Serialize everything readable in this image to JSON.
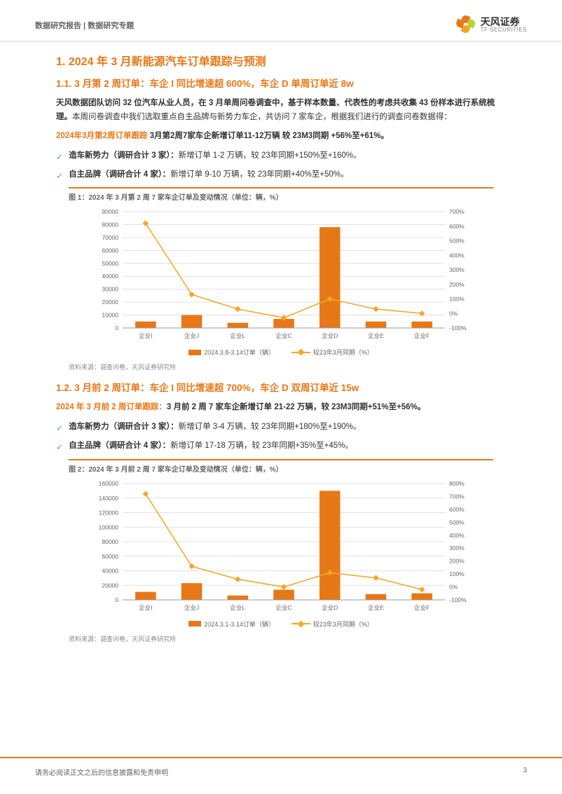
{
  "header": {
    "left": "数据研究报告 | 数据研究专题",
    "logo_cn": "天风证券",
    "logo_en": "TF SECURITIES",
    "petal_colors": [
      "#e67817",
      "#b8d432",
      "#f5a623",
      "#e67817"
    ]
  },
  "section1": {
    "title": "1. 2024 年 3 月新能源汽车订单跟踪与预测",
    "sub1_title": "1.1. 3 月第 2 周订单：车企 I 同比增速超 600%，车企 D 单周订单近 8w",
    "p1_bold": "天风数据团队访问 32 位汽车从业人员，在 3 月单周问卷调查中，基于样本数量、代表性的考虑共收集 43 份样本进行系统梳理。",
    "p1_rest": "本周问卷调查中我们选取重点自主品牌与新势力车企，共访问 7 家车企，根据我们进行的调查问卷数据得：",
    "p2_highlight": "2024年3月第2周订单跟踪",
    "p2_rest": " 3月第2周7家车企新增订单11-12万辆 较 23M3同期 +56%至+61%。",
    "b1_bold": "造车新势力（调研合计 3 家）：",
    "b1_rest": "新增订单 1-2 万辆，较 23年同期+150%至+160%。",
    "b2_bold": "自主品牌（调研合计 4 家）：",
    "b2_rest": "新增订单 9-10 万辆，较 23年同期+40%至+50%。"
  },
  "chart1": {
    "title": "图 1：2024 年 3 月第 2 周 7 家车企订单及变动情况（单位：辆，%）",
    "type": "bar-line-combo",
    "categories": [
      "企业I",
      "企业J",
      "企业L",
      "企业C",
      "企业D",
      "企业E",
      "企业F"
    ],
    "bar_values": [
      5000,
      10000,
      4000,
      7000,
      78000,
      5000,
      5000
    ],
    "line_values": [
      620,
      130,
      30,
      -30,
      100,
      30,
      0
    ],
    "y1_ticks": [
      0,
      10000,
      20000,
      30000,
      40000,
      50000,
      60000,
      70000,
      80000,
      90000
    ],
    "y2_ticks": [
      -100,
      0,
      100,
      200,
      300,
      400,
      500,
      600,
      700
    ],
    "y1_lim": [
      0,
      90000
    ],
    "y2_lim": [
      -100,
      700
    ],
    "bar_color": "#e67817",
    "line_color": "#f5a623",
    "grid_color": "#e0e0e0",
    "background_color": "#ffffff",
    "bar_width": 0.45,
    "legend_bar": "2024.3.8-3.14订单（辆）",
    "legend_line": "较23年3月同期（%）",
    "source": "资料来源：调查问卷，天风证券研究所"
  },
  "section2": {
    "sub_title": "1.2. 3 月前 2 周订单：车企 I 同比增速超 700%，车企 D 双周订单近 15w",
    "p1_highlight": "2024 年 3 月前 2 周订单跟踪：",
    "p1_rest": "3 月前 2 周 7 家车企新增订单 21-22 万辆，较 23M3同期+51%至+56%。",
    "b1_bold": "造车新势力（调研合计 3 家）：",
    "b1_rest": "新增订单 3-4 万辆，较 23年同期+180%至+190%。",
    "b2_bold": "自主品牌（调研合计 4 家）：",
    "b2_rest": "新增订单 17-18 万辆，较 23年同期+35%至+45%。"
  },
  "chart2": {
    "title": "图 2：2024 年 3 月前 2 周 7 家车企订单及变动情况（单位：辆，%）",
    "type": "bar-line-combo",
    "categories": [
      "企业I",
      "企业J",
      "企业L",
      "企业C",
      "企业D",
      "企业E",
      "企业F"
    ],
    "bar_values": [
      11000,
      23000,
      6000,
      14000,
      150000,
      8000,
      9000
    ],
    "line_values": [
      720,
      160,
      60,
      0,
      110,
      70,
      -20
    ],
    "y1_ticks": [
      0,
      20000,
      40000,
      60000,
      80000,
      100000,
      120000,
      140000,
      160000
    ],
    "y2_ticks": [
      -100,
      0,
      100,
      200,
      300,
      400,
      500,
      600,
      700,
      800
    ],
    "y1_lim": [
      0,
      160000
    ],
    "y2_lim": [
      -100,
      800
    ],
    "bar_color": "#e67817",
    "line_color": "#f5a623",
    "grid_color": "#e0e0e0",
    "background_color": "#ffffff",
    "bar_width": 0.45,
    "legend_bar": "2024.3.1-3.14订单（辆）",
    "legend_line": "较23年3月同期（%）",
    "source": "资料来源：调查问卷，天风证券研究所"
  },
  "footer": {
    "text": "请务必阅读正文之后的信息披露和免责申明",
    "page": "3"
  }
}
